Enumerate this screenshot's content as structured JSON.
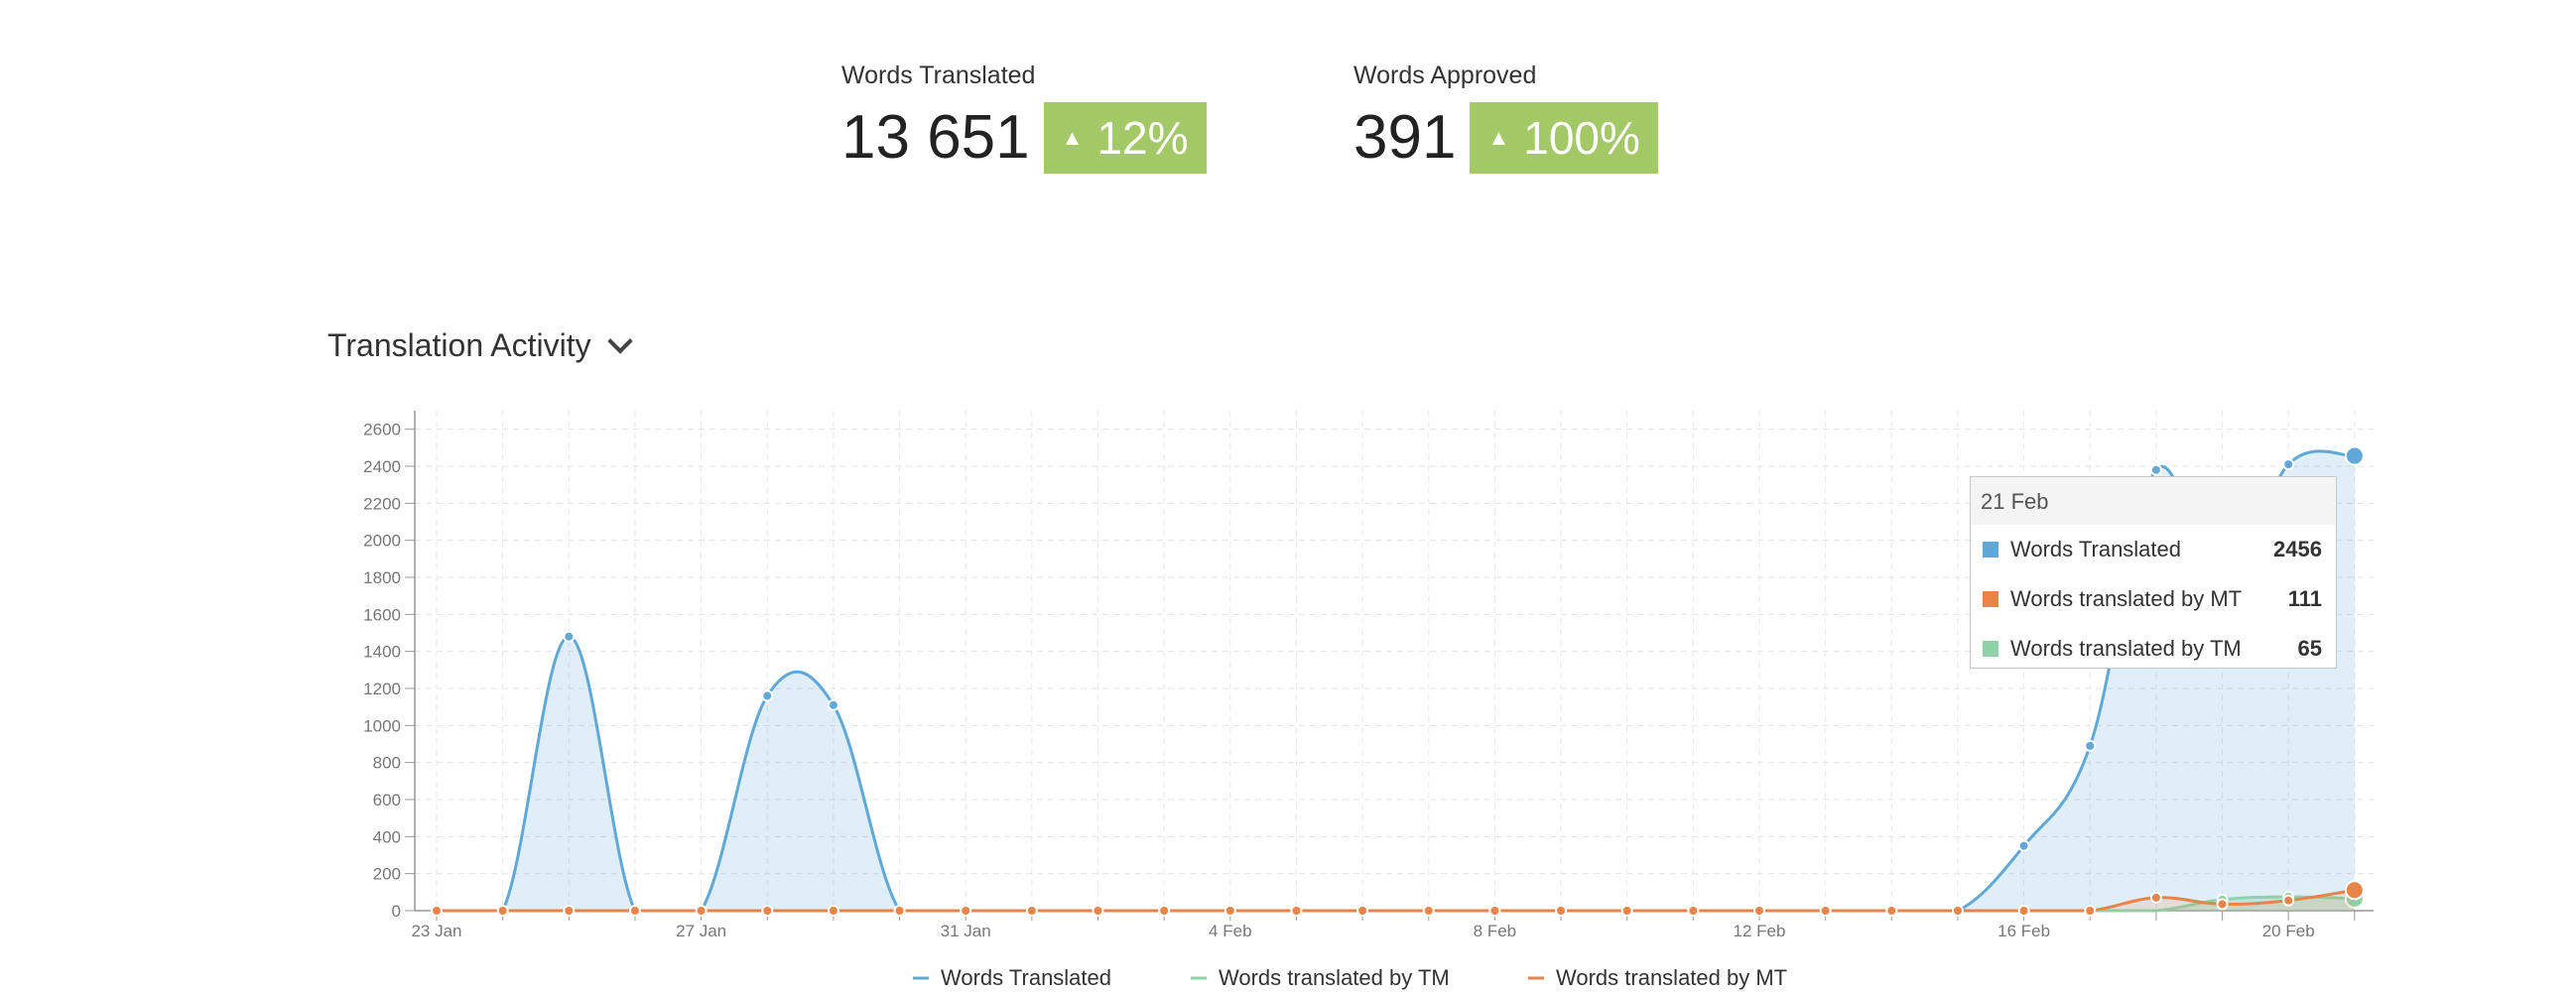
{
  "stats": {
    "translated": {
      "label": "Words Translated",
      "value": "13 651",
      "change": "12%"
    },
    "approved": {
      "label": "Words Approved",
      "value": "391",
      "change": "100%"
    }
  },
  "section": {
    "title": "Translation Activity"
  },
  "colors": {
    "translated": "#5fa8d8",
    "tm": "#8fd1a8",
    "mt": "#e8834a",
    "badge": "#a3c966"
  },
  "tooltip": {
    "date": "21 Feb",
    "rows": [
      {
        "name": "Words Translated",
        "value": "2456"
      },
      {
        "name": "Words translated by MT",
        "value": "111"
      },
      {
        "name": "Words translated by TM",
        "value": "65"
      }
    ]
  },
  "chart_data": {
    "type": "area",
    "x": [
      "23 Jan",
      "24 Jan",
      "25 Jan",
      "26 Jan",
      "27 Jan",
      "28 Jan",
      "29 Jan",
      "30 Jan",
      "31 Jan",
      "1 Feb",
      "2 Feb",
      "3 Feb",
      "4 Feb",
      "5 Feb",
      "6 Feb",
      "7 Feb",
      "8 Feb",
      "9 Feb",
      "10 Feb",
      "11 Feb",
      "12 Feb",
      "13 Feb",
      "14 Feb",
      "15 Feb",
      "16 Feb",
      "17 Feb",
      "18 Feb",
      "19 Feb",
      "20 Feb",
      "21 Feb"
    ],
    "x_tick_labels": [
      "23 Jan",
      "27 Jan",
      "31 Jan",
      "4 Feb",
      "8 Feb",
      "12 Feb",
      "16 Feb",
      "20 Feb"
    ],
    "y_ticks": [
      0,
      200,
      400,
      600,
      800,
      1000,
      1200,
      1400,
      1600,
      1800,
      2000,
      2200,
      2400,
      2600
    ],
    "ylim": [
      0,
      2700
    ],
    "grid": true,
    "legend_position": "bottom",
    "series": [
      {
        "name": "Words Translated",
        "values": [
          0,
          0,
          1480,
          0,
          0,
          1160,
          1110,
          0,
          0,
          0,
          0,
          0,
          0,
          0,
          0,
          0,
          0,
          0,
          0,
          0,
          0,
          0,
          0,
          0,
          350,
          890,
          2380,
          1720,
          2410,
          2456
        ]
      },
      {
        "name": "Words translated by TM",
        "values": [
          0,
          0,
          0,
          0,
          0,
          0,
          0,
          0,
          0,
          0,
          0,
          0,
          0,
          0,
          0,
          0,
          0,
          0,
          0,
          0,
          0,
          0,
          0,
          0,
          0,
          0,
          0,
          60,
          75,
          65
        ]
      },
      {
        "name": "Words translated by MT",
        "values": [
          0,
          0,
          0,
          0,
          0,
          0,
          0,
          0,
          0,
          0,
          0,
          0,
          0,
          0,
          0,
          0,
          0,
          0,
          0,
          0,
          0,
          0,
          0,
          0,
          0,
          0,
          70,
          35,
          55,
          111
        ]
      }
    ]
  }
}
